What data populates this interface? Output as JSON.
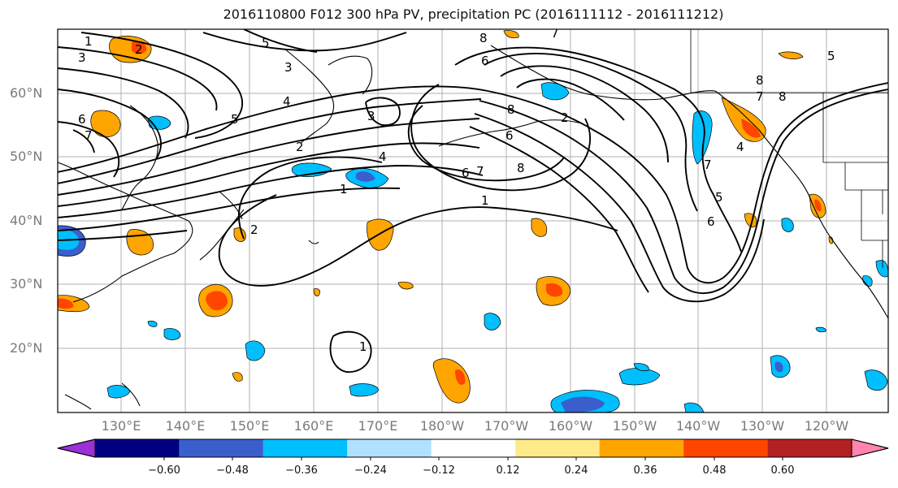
{
  "title": "2016110800 F012 300 hPa PV, precipitation PC (2016111112 - 2016111212)",
  "lat_labels": [
    "60°N",
    "50°N",
    "40°N",
    "30°N",
    "20°N"
  ],
  "lon_labels": [
    "130°E",
    "140°E",
    "150°E",
    "160°E",
    "170°E",
    "180°W",
    "170°W",
    "160°W",
    "150°W",
    "140°W",
    "130°W",
    "120°W"
  ],
  "colorbar": {
    "ticks": [
      "−0.60",
      "−0.48",
      "−0.36",
      "−0.24",
      "−0.12",
      "0.12",
      "0.24",
      "0.36",
      "0.48",
      "0.60"
    ],
    "colors": [
      "#9b30d6",
      "#000080",
      "#3a5fcd",
      "#00bfff",
      "#b0e2ff",
      "#ffffff",
      "#ffea8a",
      "#ffa500",
      "#ff4500",
      "#b22222",
      "#ff85b0"
    ]
  },
  "contour_labels": [
    "1",
    "2",
    "3",
    "5",
    "3",
    "4",
    "5",
    "6",
    "7",
    "8",
    "6",
    "7",
    "8",
    "6",
    "7",
    "8",
    "5",
    "6",
    "7",
    "8",
    "4",
    "1",
    "1",
    "2",
    "3",
    "4",
    "5",
    "2",
    "6",
    "7",
    "8",
    "2",
    "1"
  ]
}
